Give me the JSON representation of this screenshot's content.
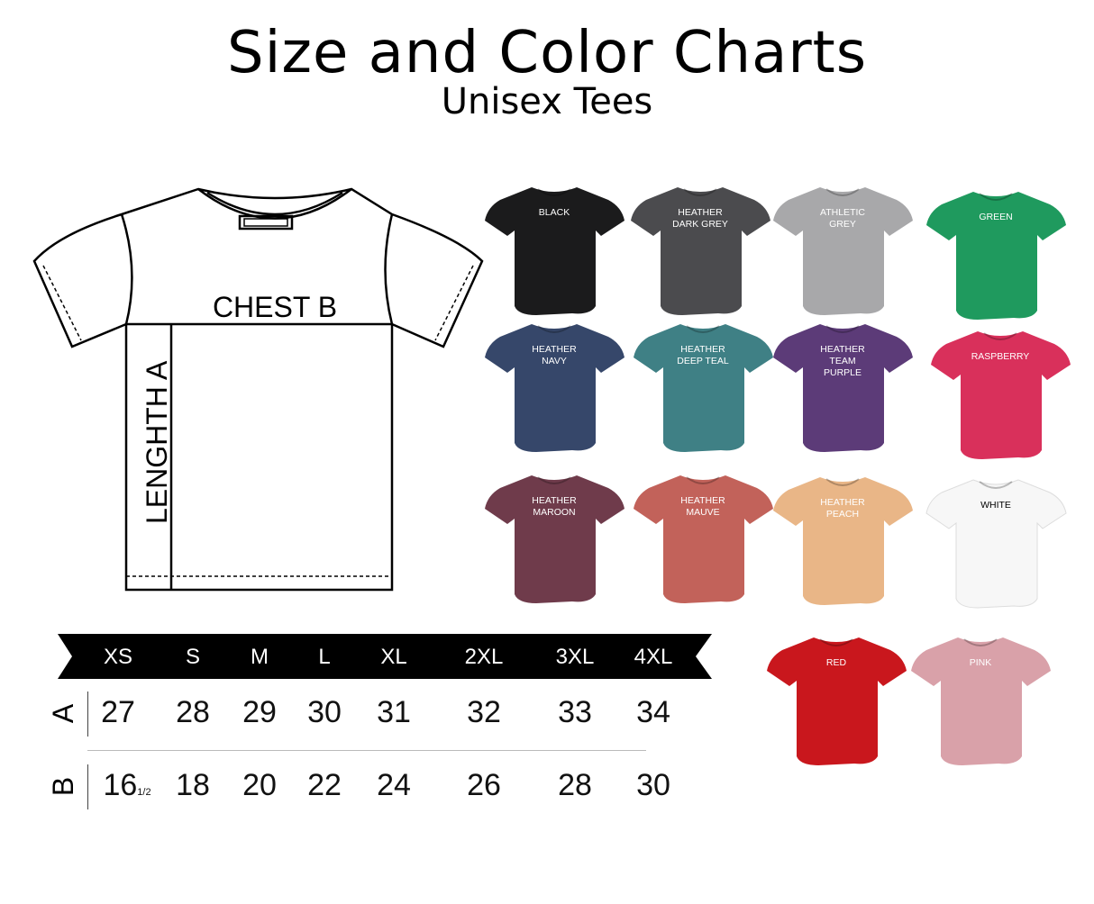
{
  "header": {
    "title": "Size and Color Charts",
    "subtitle": "Unisex Tees"
  },
  "diagram": {
    "chest_label": "CHEST B",
    "length_label": "LENGHTH A"
  },
  "size_table": {
    "sizes": [
      "XS",
      "S",
      "M",
      "L",
      "XL",
      "2XL",
      "3XL",
      "4XL"
    ],
    "rows": [
      {
        "label": "A",
        "values": [
          "27",
          "28",
          "29",
          "30",
          "31",
          "32",
          "33",
          "34"
        ]
      },
      {
        "label": "B",
        "values": [
          "16",
          "18",
          "20",
          "22",
          "24",
          "26",
          "28",
          "30"
        ],
        "first_fraction": "1/2"
      }
    ]
  },
  "colors": [
    {
      "name": "BLACK",
      "hex": "#1b1b1c",
      "text": "#ffffff"
    },
    {
      "name": "HEATHER\nDARK GREY",
      "hex": "#4b4b4e",
      "text": "#ffffff"
    },
    {
      "name": "ATHLETIC\nGREY",
      "hex": "#a8a8aa",
      "text": "#ffffff"
    },
    {
      "name": "GREEN",
      "hex": "#1f9a5e",
      "text": "#ffffff"
    },
    {
      "name": "HEATHER\nNAVY",
      "hex": "#36476a",
      "text": "#ffffff"
    },
    {
      "name": "HEATHER\nDEEP TEAL",
      "hex": "#3f8085",
      "text": "#ffffff"
    },
    {
      "name": "HEATHER\nTEAM\nPURPLE",
      "hex": "#5c3b78",
      "text": "#ffffff"
    },
    {
      "name": "RASPBERRY",
      "hex": "#d9305b",
      "text": "#ffffff"
    },
    {
      "name": "HEATHER\nMAROON",
      "hex": "#6f3b4b",
      "text": "#ffffff"
    },
    {
      "name": "HEATHER\nMAUVE",
      "hex": "#c2625a",
      "text": "#ffffff"
    },
    {
      "name": "HEATHER\nPEACH",
      "hex": "#e9b687",
      "text": "#ffffff"
    },
    {
      "name": "WHITE",
      "hex": "#f7f7f7",
      "text": "#000000"
    },
    {
      "name": "RED",
      "hex": "#c9171d",
      "text": "#ffffff"
    },
    {
      "name": "PINK",
      "hex": "#d9a1a9",
      "text": "#ffffff"
    }
  ]
}
